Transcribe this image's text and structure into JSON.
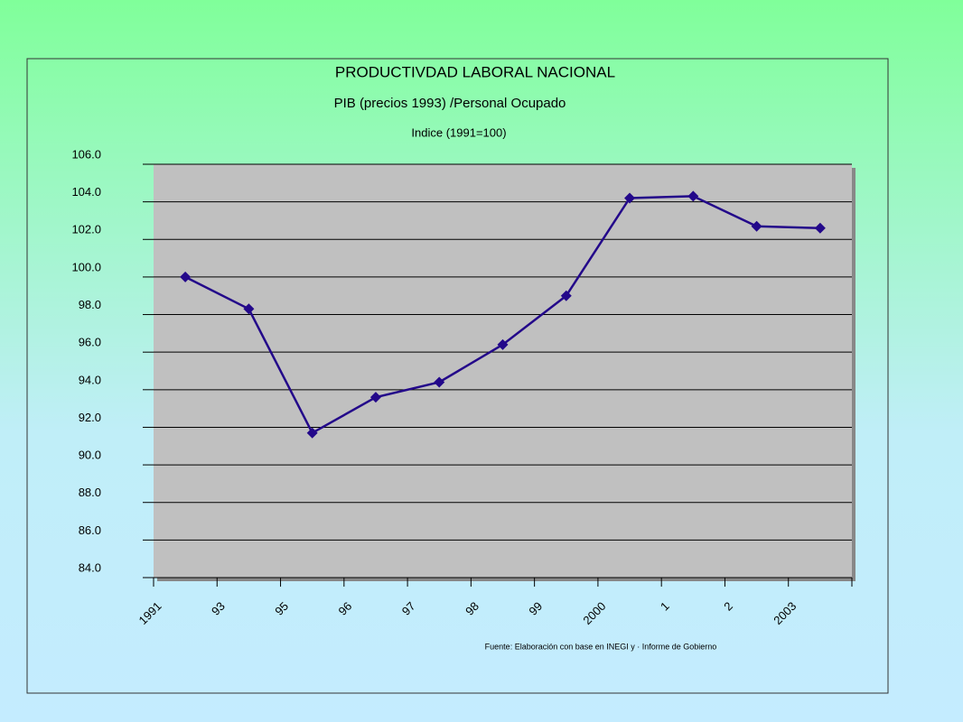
{
  "chart_data": {
    "type": "line",
    "title": "PRODUCTIVDAD LABORAL NACIONAL",
    "subtitle": "PIB (precios 1993) /Personal Ocupado",
    "y_label": "Indice (1991=100)",
    "source": "Fuente: Elaboración con base en INEGI y · Informe de Gobierno",
    "categories": [
      "1991",
      "93",
      "95",
      "96",
      "97",
      "98",
      "99",
      "2000",
      "1",
      "2",
      "2003"
    ],
    "values": [
      100.0,
      98.3,
      91.7,
      93.6,
      94.4,
      96.4,
      99.0,
      104.2,
      104.3,
      102.7,
      102.6
    ],
    "color": "#23088a",
    "ylim": [
      84,
      106
    ],
    "yticks": [
      {
        "value": 84,
        "label": "84.0"
      },
      {
        "value": 86,
        "label": "86.0"
      },
      {
        "value": 88,
        "label": "88.0"
      },
      {
        "value": 90,
        "label": "90.0"
      },
      {
        "value": 92,
        "label": "92.0"
      },
      {
        "value": 94,
        "label": "94.0"
      },
      {
        "value": 96,
        "label": "96.0"
      },
      {
        "value": 98,
        "label": "98.0"
      },
      {
        "value": 100,
        "label": "100.0"
      },
      {
        "value": 102,
        "label": "102.0"
      },
      {
        "value": 104,
        "label": "104.0"
      },
      {
        "value": 106,
        "label": "106.0"
      }
    ],
    "grid": true
  }
}
